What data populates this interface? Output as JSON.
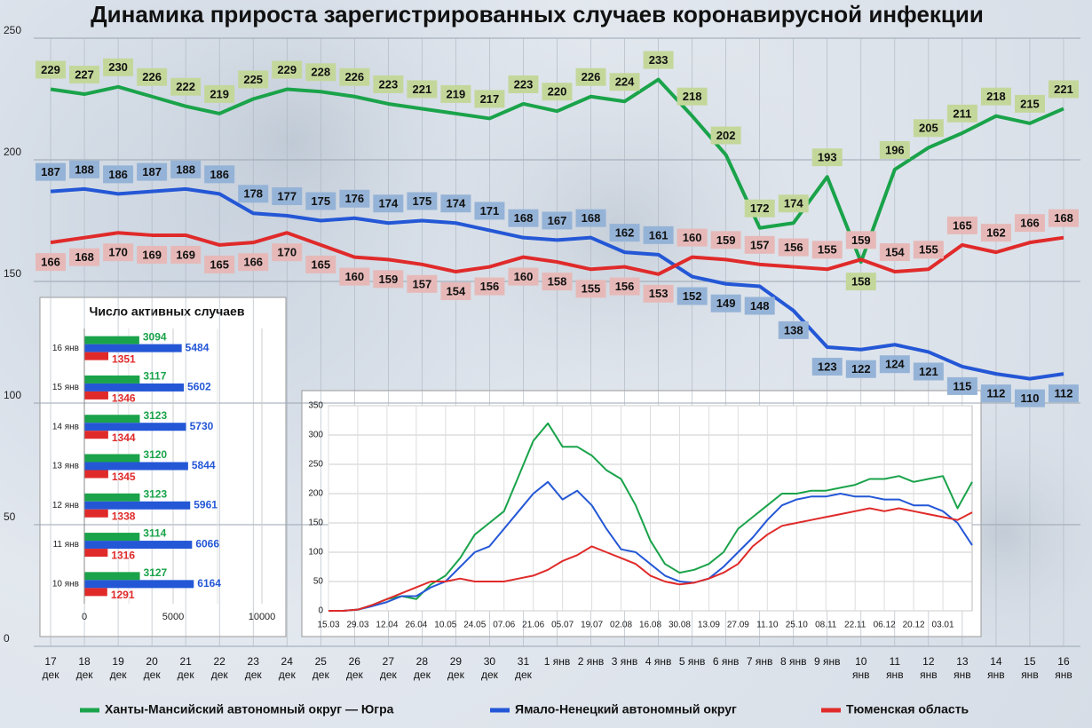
{
  "chart_data": [
    {
      "type": "line",
      "title": "Динамика прироста зарегистрированных случаев коронавирусной инфекции",
      "categories": [
        "17 дек",
        "18 дек",
        "19 дек",
        "20 дек",
        "21 дек",
        "22 дек",
        "23 дек",
        "24 дек",
        "25 дек",
        "26 дек",
        "27 дек",
        "28 дек",
        "29 дек",
        "30 дек",
        "31 дек",
        "1 янв",
        "2 янв",
        "3 янв",
        "4 янв",
        "5 янв",
        "6 янв",
        "7 янв",
        "8 янв",
        "9 янв",
        "10 янв",
        "11 янв",
        "12 янв",
        "13 янв",
        "14 янв",
        "15 янв",
        "16 янв"
      ],
      "series": [
        {
          "name": "Ханты-Мансийский автономный округ — Югра",
          "color": "#1aa34a",
          "values": [
            229,
            227,
            230,
            226,
            222,
            219,
            225,
            229,
            228,
            226,
            223,
            221,
            219,
            217,
            223,
            220,
            226,
            224,
            233,
            218,
            202,
            172,
            174,
            193,
            158,
            196,
            205,
            211,
            218,
            215,
            221
          ]
        },
        {
          "name": "Ямало-Ненецкий автономный округ",
          "color": "#2457d6",
          "values": [
            187,
            188,
            186,
            187,
            188,
            186,
            178,
            177,
            175,
            176,
            174,
            175,
            174,
            171,
            168,
            167,
            168,
            162,
            161,
            152,
            149,
            148,
            138,
            123,
            122,
            124,
            121,
            115,
            112,
            110,
            112
          ]
        },
        {
          "name": "Тюменская область",
          "color": "#e02a2a",
          "values": [
            166,
            168,
            170,
            169,
            169,
            165,
            166,
            170,
            165,
            160,
            159,
            157,
            154,
            156,
            160,
            158,
            155,
            156,
            153,
            160,
            159,
            157,
            156,
            155,
            159,
            154,
            155,
            165,
            162,
            166,
            168
          ]
        }
      ],
      "ylim": [
        0,
        250
      ],
      "yticks": [
        0,
        50,
        100,
        150,
        200,
        250
      ],
      "grid": true,
      "legend": "bottom"
    },
    {
      "type": "bar",
      "orientation": "horizontal",
      "title": "Число активных случаев",
      "categories": [
        "16 янв",
        "15 янв",
        "14 янв",
        "13 янв",
        "12 янв",
        "11 янв",
        "10 янв"
      ],
      "series": [
        {
          "color": "#1aa34a",
          "values": [
            3094,
            3117,
            3123,
            3120,
            3123,
            3114,
            3127
          ]
        },
        {
          "color": "#2457d6",
          "values": [
            5484,
            5602,
            5730,
            5844,
            5961,
            6066,
            6164
          ]
        },
        {
          "color": "#e02a2a",
          "values": [
            1351,
            1346,
            1344,
            1345,
            1338,
            1316,
            1291
          ]
        }
      ],
      "xlim": [
        0,
        10000
      ],
      "xticks": [
        0,
        5000,
        10000
      ],
      "grid": true
    },
    {
      "type": "line",
      "categories": [
        "15.03",
        null,
        "29.03",
        null,
        "12.04",
        null,
        "26.04",
        null,
        "10.05",
        null,
        "24.05",
        null,
        "07.06",
        null,
        "21.06",
        null,
        "05.07",
        null,
        "19.07",
        null,
        "02.08",
        null,
        "16.08",
        null,
        "30.08",
        null,
        "13.09",
        null,
        "27.09",
        null,
        "11.10",
        null,
        "25.10",
        null,
        "08.11",
        null,
        "22.11",
        null,
        "06.12",
        null,
        "20.12",
        null,
        "03.01",
        null,
        null
      ],
      "series": [
        {
          "color": "#1aa34a",
          "values": [
            0,
            0,
            2,
            10,
            20,
            25,
            20,
            45,
            60,
            90,
            130,
            150,
            170,
            230,
            290,
            320,
            280,
            280,
            265,
            240,
            225,
            180,
            120,
            80,
            65,
            70,
            80,
            100,
            140,
            160,
            180,
            200,
            200,
            205,
            205,
            210,
            215,
            225,
            225,
            230,
            220,
            225,
            230,
            175,
            220
          ]
        },
        {
          "color": "#2457d6",
          "values": [
            0,
            0,
            2,
            8,
            15,
            25,
            25,
            40,
            50,
            75,
            100,
            110,
            140,
            170,
            200,
            220,
            190,
            205,
            180,
            140,
            105,
            100,
            80,
            60,
            50,
            48,
            55,
            75,
            100,
            125,
            155,
            180,
            190,
            195,
            195,
            200,
            195,
            195,
            190,
            190,
            180,
            180,
            170,
            150,
            112
          ]
        },
        {
          "color": "#e02a2a",
          "values": [
            0,
            0,
            2,
            10,
            20,
            30,
            40,
            50,
            50,
            55,
            50,
            50,
            50,
            55,
            60,
            70,
            85,
            95,
            110,
            100,
            90,
            80,
            60,
            50,
            45,
            48,
            55,
            65,
            80,
            110,
            130,
            145,
            150,
            155,
            160,
            165,
            170,
            175,
            170,
            175,
            170,
            165,
            160,
            155,
            168
          ]
        }
      ],
      "ylim": [
        0,
        350
      ],
      "yticks": [
        0,
        50,
        100,
        150,
        200,
        250,
        300,
        350
      ],
      "grid": true
    }
  ]
}
